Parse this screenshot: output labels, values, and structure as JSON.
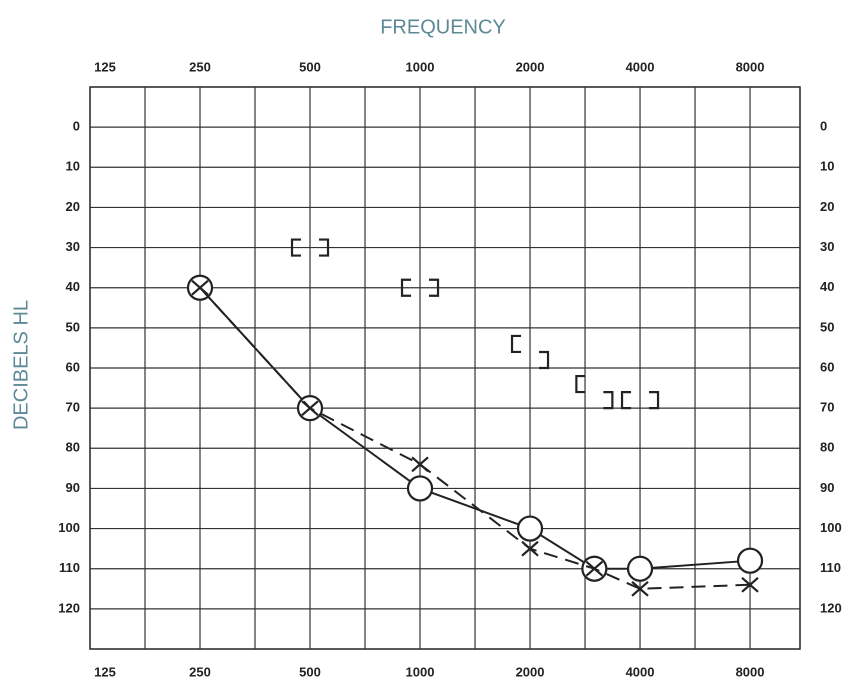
{
  "chart_data": {
    "type": "line",
    "title": "FREQUENCY",
    "y_label": "DECIBELS HL",
    "xscale": "log",
    "xlim": [
      125,
      10960
    ],
    "xticks": [
      125,
      250,
      500,
      1000,
      2000,
      4000,
      8000
    ],
    "ylim": [
      130,
      -10
    ],
    "yticks": [
      0,
      10,
      20,
      30,
      40,
      50,
      60,
      70,
      80,
      90,
      100,
      110,
      120
    ],
    "grid": true,
    "series": [
      {
        "marker": "o",
        "dash": false,
        "color": "#222222",
        "x": [
          250,
          500,
          1000,
          2000,
          3000,
          4000,
          8000
        ],
        "values": [
          40,
          70,
          90,
          100,
          110,
          110,
          108
        ]
      },
      {
        "marker": "x",
        "dash": true,
        "color": "#222222",
        "x": [
          250,
          500,
          1000,
          2000,
          3000,
          4000,
          8000
        ],
        "values": [
          40,
          70,
          84,
          105,
          110,
          115,
          114
        ]
      },
      {
        "marker": "[",
        "dash": null,
        "color": "#222222",
        "x": [
          500,
          1000,
          2000,
          3000,
          4000
        ],
        "values": [
          30,
          40,
          54,
          64,
          68
        ]
      },
      {
        "marker": "]",
        "dash": null,
        "color": "#222222",
        "x": [
          500,
          1000,
          2000,
          3000,
          4000
        ],
        "values": [
          30,
          40,
          58,
          68,
          68
        ]
      }
    ]
  }
}
